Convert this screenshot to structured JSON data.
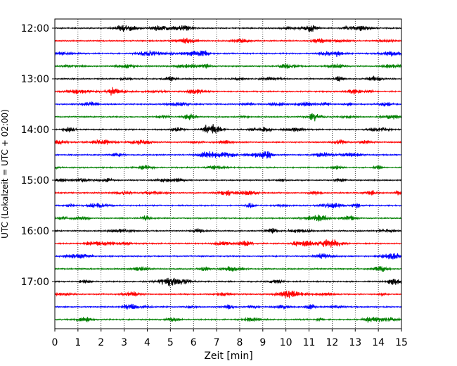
{
  "chart_data": {
    "type": "line",
    "title": "",
    "xlabel": "Zeit  [min]",
    "ylabel": "UTC (Lokalzeit = UTC + 02:00)",
    "xlim": [
      0,
      15
    ],
    "x_ticks": [
      "0",
      "1",
      "2",
      "3",
      "4",
      "5",
      "6",
      "7",
      "8",
      "9",
      "10",
      "11",
      "12",
      "13",
      "14",
      "15"
    ],
    "y_tick_labels": [
      "12:00",
      "13:00",
      "14:00",
      "15:00",
      "16:00",
      "17:00"
    ],
    "trace_start_times": [
      "12:00",
      "12:15",
      "12:30",
      "12:45",
      "13:00",
      "13:15",
      "13:30",
      "13:45",
      "14:00",
      "14:15",
      "14:30",
      "14:45",
      "15:00",
      "15:15",
      "15:30",
      "15:45",
      "16:00",
      "16:15",
      "16:30",
      "16:45",
      "17:00",
      "17:15",
      "17:30",
      "17:45"
    ],
    "trace_interval_min": 15,
    "trace_colors": [
      "#000000",
      "#ff0000",
      "#0000ff",
      "#008000"
    ],
    "grid": "vertical dotted at each minute",
    "legend": "none"
  }
}
